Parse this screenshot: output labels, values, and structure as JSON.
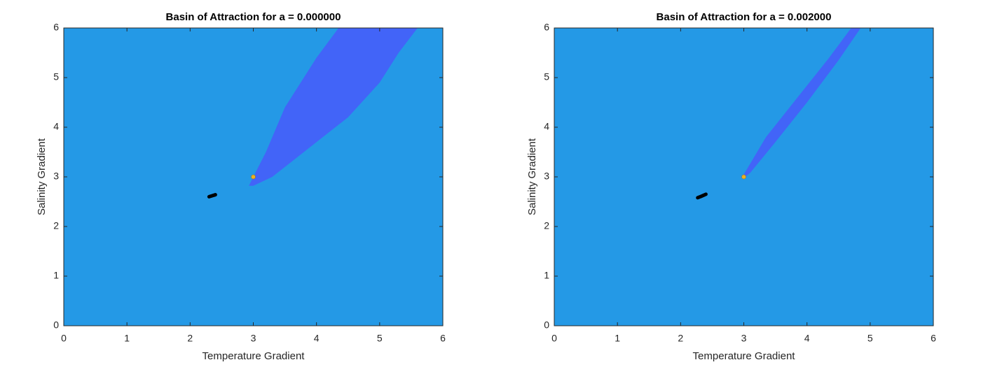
{
  "chart_data": [
    {
      "type": "region",
      "title": "Basin of Attraction for a = 0.000000",
      "xlabel": "Temperature Gradient",
      "ylabel": "Salinity Gradient",
      "xlim": [
        0,
        6
      ],
      "ylim": [
        0,
        6
      ],
      "xticks": [
        0,
        1,
        2,
        3,
        4,
        5,
        6
      ],
      "yticks": [
        0,
        1,
        2,
        3,
        4,
        5,
        6
      ],
      "background": "#2499e6",
      "series": [
        {
          "style": "fill",
          "color": "#4264f8",
          "x": [
            2.93,
            3.0,
            3.3,
            3.6,
            4.0,
            4.5,
            5.0,
            5.3,
            5.6,
            4.35,
            4.0,
            3.5,
            3.2,
            3.0,
            2.93
          ],
          "y": [
            2.82,
            2.82,
            3.0,
            3.3,
            3.7,
            4.2,
            4.9,
            5.5,
            6.0,
            6.0,
            5.4,
            4.4,
            3.5,
            3.0,
            2.82
          ]
        },
        {
          "style": "line",
          "color": "#000000",
          "x": [
            2.3,
            2.35,
            2.4
          ],
          "y": [
            2.6,
            2.62,
            2.64
          ]
        },
        {
          "style": "point",
          "color": "#edb120",
          "x": [
            3.0
          ],
          "y": [
            3.0
          ]
        }
      ]
    },
    {
      "type": "region",
      "title": "Basin of Attraction for a = 0.002000",
      "xlabel": "Temperature Gradient",
      "ylabel": "Salinity Gradient",
      "xlim": [
        0,
        6
      ],
      "ylim": [
        0,
        6
      ],
      "xticks": [
        0,
        1,
        2,
        3,
        4,
        5,
        6
      ],
      "yticks": [
        0,
        1,
        2,
        3,
        4,
        5,
        6
      ],
      "background": "#2499e6",
      "series": [
        {
          "style": "fill",
          "color": "#4264f8",
          "x": [
            3.0,
            3.1,
            3.5,
            4.0,
            4.5,
            4.85,
            4.7,
            4.35,
            3.85,
            3.35,
            3.0
          ],
          "y": [
            2.98,
            3.08,
            3.7,
            4.5,
            5.35,
            6.0,
            6.0,
            5.4,
            4.6,
            3.8,
            3.05
          ]
        },
        {
          "style": "line",
          "color": "#000000",
          "x": [
            2.27,
            2.33,
            2.4
          ],
          "y": [
            2.58,
            2.61,
            2.65
          ]
        },
        {
          "style": "point",
          "color": "#edb120",
          "x": [
            3.0
          ],
          "y": [
            3.0
          ]
        }
      ]
    }
  ]
}
